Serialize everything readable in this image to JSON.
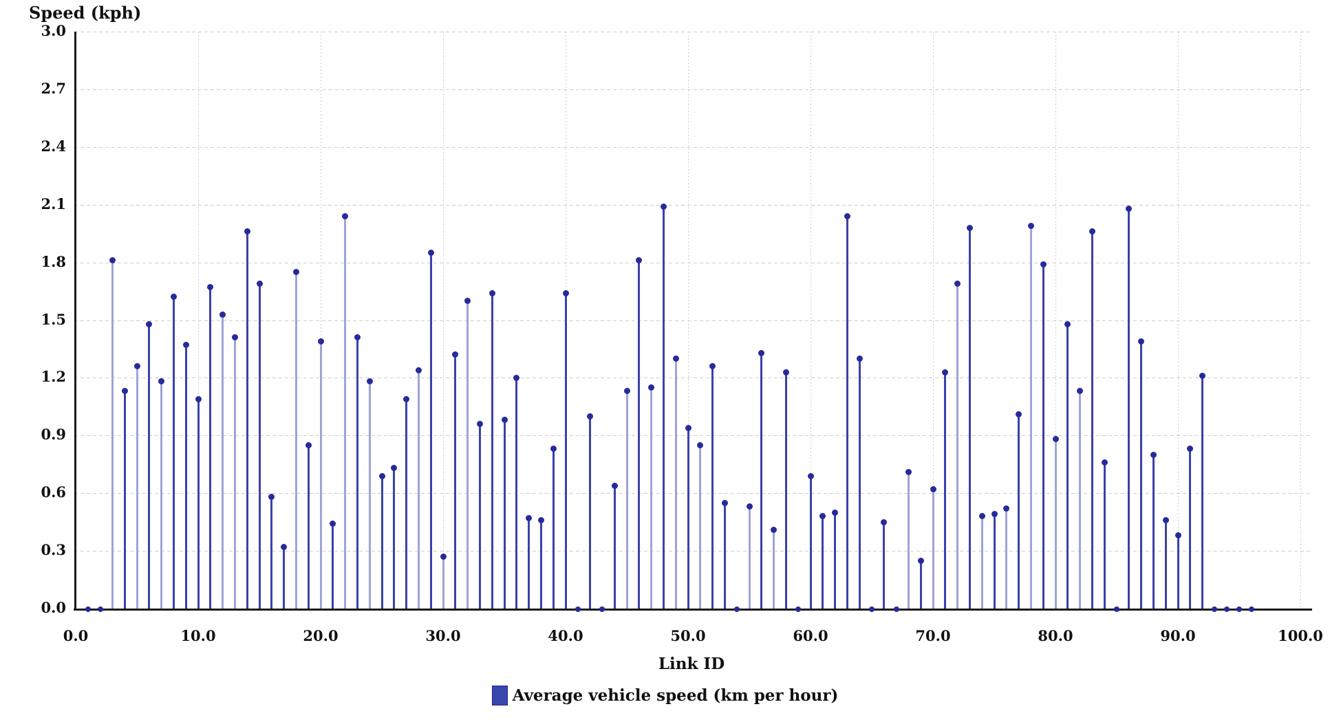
{
  "title": "Speed (kph)",
  "x_axis": {
    "label": "Link ID",
    "tick_labels": [
      "0.0",
      "10.0",
      "20.0",
      "30.0",
      "40.0",
      "50.0",
      "60.0",
      "70.0",
      "80.0",
      "90.0",
      "100.0"
    ]
  },
  "y_axis": {
    "tick_labels": [
      "0.0",
      "0.3",
      "0.6",
      "0.9",
      "1.2",
      "1.5",
      "1.8",
      "2.1",
      "2.4",
      "2.7",
      "3.0"
    ]
  },
  "legend": {
    "label": "Average vehicle speed (km per hour)",
    "swatch_color": "#3747ad"
  },
  "colors": {
    "stem_dark": "#3c40aa",
    "stem_light": "#9fa3d6",
    "marker": "#272a9b",
    "grid": "#cdcdcd",
    "axis": "#1a1a1a"
  },
  "chart_data": {
    "type": "stem",
    "title": "Speed (kph)",
    "xlabel": "Link ID",
    "ylabel": "Speed (kph)",
    "xlim": [
      0,
      100
    ],
    "ylim": [
      0,
      3.0
    ],
    "x_ticks": [
      0,
      10,
      20,
      30,
      40,
      50,
      60,
      70,
      80,
      90,
      100
    ],
    "y_ticks": [
      0,
      0.3,
      0.6,
      0.9,
      1.2,
      1.5,
      1.8,
      2.1,
      2.4,
      2.7,
      3.0
    ],
    "grid": true,
    "legend_position": "bottom-center",
    "series_name": "Average vehicle speed (km per hour)",
    "points": [
      {
        "x": 1,
        "y": 0.0,
        "shade": "dark"
      },
      {
        "x": 2,
        "y": 0.0,
        "shade": "dark"
      },
      {
        "x": 3,
        "y": 1.81,
        "shade": "light"
      },
      {
        "x": 4,
        "y": 1.13,
        "shade": "dark"
      },
      {
        "x": 5,
        "y": 1.26,
        "shade": "light"
      },
      {
        "x": 6,
        "y": 1.48,
        "shade": "dark"
      },
      {
        "x": 7,
        "y": 1.18,
        "shade": "light"
      },
      {
        "x": 8,
        "y": 1.62,
        "shade": "dark"
      },
      {
        "x": 9,
        "y": 1.37,
        "shade": "dark"
      },
      {
        "x": 10,
        "y": 1.09,
        "shade": "dark"
      },
      {
        "x": 11,
        "y": 1.67,
        "shade": "dark"
      },
      {
        "x": 12,
        "y": 1.53,
        "shade": "light"
      },
      {
        "x": 13,
        "y": 1.41,
        "shade": "light"
      },
      {
        "x": 14,
        "y": 1.96,
        "shade": "dark"
      },
      {
        "x": 15,
        "y": 1.69,
        "shade": "dark"
      },
      {
        "x": 16,
        "y": 0.58,
        "shade": "dark"
      },
      {
        "x": 17,
        "y": 0.32,
        "shade": "dark"
      },
      {
        "x": 18,
        "y": 1.75,
        "shade": "light"
      },
      {
        "x": 19,
        "y": 0.85,
        "shade": "dark"
      },
      {
        "x": 20,
        "y": 1.39,
        "shade": "light"
      },
      {
        "x": 21,
        "y": 0.44,
        "shade": "dark"
      },
      {
        "x": 22,
        "y": 2.04,
        "shade": "light"
      },
      {
        "x": 23,
        "y": 1.41,
        "shade": "dark"
      },
      {
        "x": 24,
        "y": 1.18,
        "shade": "light"
      },
      {
        "x": 25,
        "y": 0.69,
        "shade": "dark"
      },
      {
        "x": 26,
        "y": 0.73,
        "shade": "dark"
      },
      {
        "x": 27,
        "y": 1.09,
        "shade": "dark"
      },
      {
        "x": 28,
        "y": 1.24,
        "shade": "light"
      },
      {
        "x": 29,
        "y": 1.85,
        "shade": "dark"
      },
      {
        "x": 30,
        "y": 0.27,
        "shade": "light"
      },
      {
        "x": 31,
        "y": 1.32,
        "shade": "dark"
      },
      {
        "x": 32,
        "y": 1.6,
        "shade": "light"
      },
      {
        "x": 33,
        "y": 0.96,
        "shade": "dark"
      },
      {
        "x": 34,
        "y": 1.64,
        "shade": "dark"
      },
      {
        "x": 35,
        "y": 0.98,
        "shade": "dark"
      },
      {
        "x": 36,
        "y": 1.2,
        "shade": "dark"
      },
      {
        "x": 37,
        "y": 0.47,
        "shade": "dark"
      },
      {
        "x": 38,
        "y": 0.46,
        "shade": "dark"
      },
      {
        "x": 39,
        "y": 0.83,
        "shade": "dark"
      },
      {
        "x": 40,
        "y": 1.64,
        "shade": "dark"
      },
      {
        "x": 41,
        "y": 0.0,
        "shade": "dark"
      },
      {
        "x": 42,
        "y": 1.0,
        "shade": "dark"
      },
      {
        "x": 43,
        "y": 0.0,
        "shade": "dark"
      },
      {
        "x": 44,
        "y": 0.64,
        "shade": "dark"
      },
      {
        "x": 45,
        "y": 1.13,
        "shade": "light"
      },
      {
        "x": 46,
        "y": 1.81,
        "shade": "dark"
      },
      {
        "x": 47,
        "y": 1.15,
        "shade": "light"
      },
      {
        "x": 48,
        "y": 2.09,
        "shade": "dark"
      },
      {
        "x": 49,
        "y": 1.3,
        "shade": "light"
      },
      {
        "x": 50,
        "y": 0.94,
        "shade": "dark"
      },
      {
        "x": 51,
        "y": 0.85,
        "shade": "light"
      },
      {
        "x": 52,
        "y": 1.26,
        "shade": "dark"
      },
      {
        "x": 53,
        "y": 0.55,
        "shade": "dark"
      },
      {
        "x": 54,
        "y": 0.0,
        "shade": "dark"
      },
      {
        "x": 55,
        "y": 0.53,
        "shade": "light"
      },
      {
        "x": 56,
        "y": 1.33,
        "shade": "dark"
      },
      {
        "x": 57,
        "y": 0.41,
        "shade": "light"
      },
      {
        "x": 58,
        "y": 1.23,
        "shade": "dark"
      },
      {
        "x": 59,
        "y": 0.0,
        "shade": "dark"
      },
      {
        "x": 60,
        "y": 0.69,
        "shade": "dark"
      },
      {
        "x": 61,
        "y": 0.48,
        "shade": "dark"
      },
      {
        "x": 62,
        "y": 0.5,
        "shade": "dark"
      },
      {
        "x": 63,
        "y": 2.04,
        "shade": "dark"
      },
      {
        "x": 64,
        "y": 1.3,
        "shade": "dark"
      },
      {
        "x": 65,
        "y": 0.0,
        "shade": "dark"
      },
      {
        "x": 66,
        "y": 0.45,
        "shade": "dark"
      },
      {
        "x": 67,
        "y": 0.0,
        "shade": "dark"
      },
      {
        "x": 68,
        "y": 0.71,
        "shade": "light"
      },
      {
        "x": 69,
        "y": 0.25,
        "shade": "dark"
      },
      {
        "x": 70,
        "y": 0.62,
        "shade": "light"
      },
      {
        "x": 71,
        "y": 1.23,
        "shade": "dark"
      },
      {
        "x": 72,
        "y": 1.69,
        "shade": "light"
      },
      {
        "x": 73,
        "y": 1.98,
        "shade": "dark"
      },
      {
        "x": 74,
        "y": 0.48,
        "shade": "light"
      },
      {
        "x": 75,
        "y": 0.49,
        "shade": "dark"
      },
      {
        "x": 76,
        "y": 0.52,
        "shade": "light"
      },
      {
        "x": 77,
        "y": 1.01,
        "shade": "dark"
      },
      {
        "x": 78,
        "y": 1.99,
        "shade": "light"
      },
      {
        "x": 79,
        "y": 1.79,
        "shade": "dark"
      },
      {
        "x": 80,
        "y": 0.88,
        "shade": "light"
      },
      {
        "x": 81,
        "y": 1.48,
        "shade": "dark"
      },
      {
        "x": 82,
        "y": 1.13,
        "shade": "light"
      },
      {
        "x": 83,
        "y": 1.96,
        "shade": "dark"
      },
      {
        "x": 84,
        "y": 0.76,
        "shade": "dark"
      },
      {
        "x": 85,
        "y": 0.0,
        "shade": "dark"
      },
      {
        "x": 86,
        "y": 2.08,
        "shade": "dark"
      },
      {
        "x": 87,
        "y": 1.39,
        "shade": "dark"
      },
      {
        "x": 88,
        "y": 0.8,
        "shade": "dark"
      },
      {
        "x": 89,
        "y": 0.46,
        "shade": "dark"
      },
      {
        "x": 90,
        "y": 0.38,
        "shade": "dark"
      },
      {
        "x": 91,
        "y": 0.83,
        "shade": "dark"
      },
      {
        "x": 92,
        "y": 1.21,
        "shade": "dark"
      },
      {
        "x": 93,
        "y": 0.0,
        "shade": "dark"
      },
      {
        "x": 94,
        "y": 0.0,
        "shade": "dark"
      },
      {
        "x": 95,
        "y": 0.0,
        "shade": "dark"
      },
      {
        "x": 96,
        "y": 0.0,
        "shade": "dark"
      }
    ]
  }
}
